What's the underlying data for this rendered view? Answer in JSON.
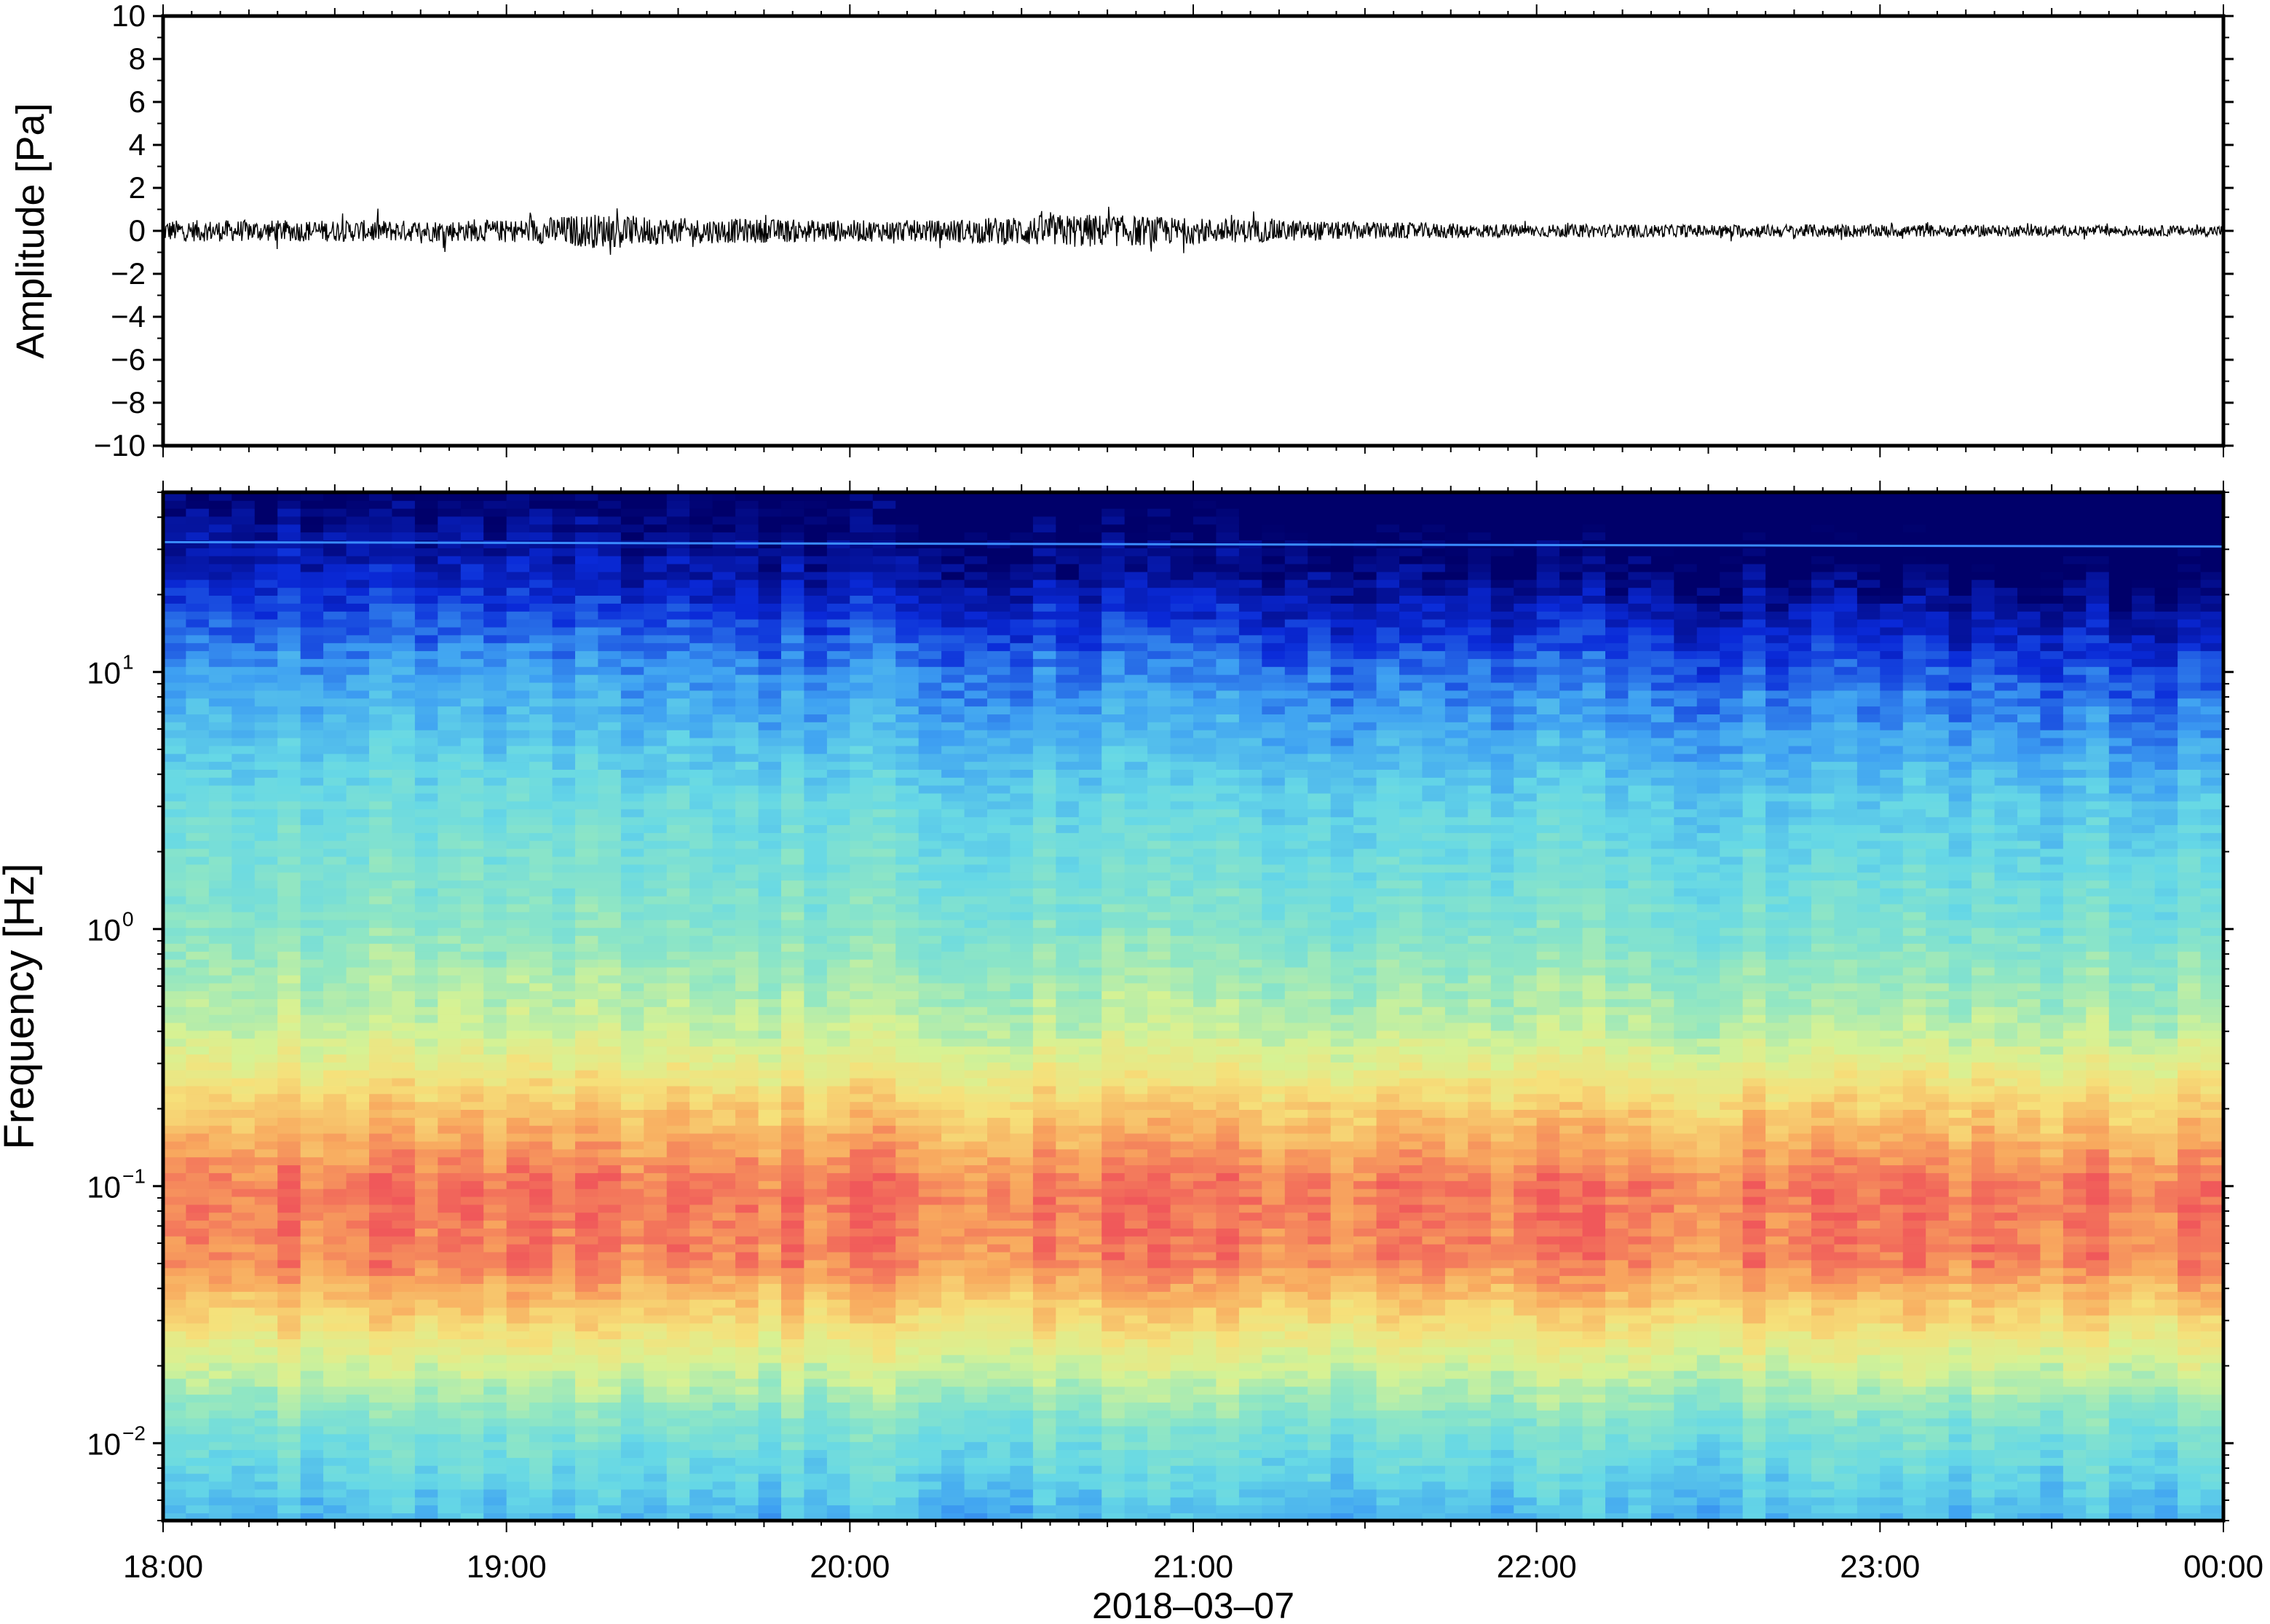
{
  "chart_data": [
    {
      "type": "line",
      "panel": "waveform",
      "ylabel": "Amplitude [Pa]",
      "ylim": [
        -10,
        10
      ],
      "yticks": [
        -10,
        -8,
        -6,
        -4,
        -2,
        0,
        2,
        4,
        6,
        8,
        10
      ],
      "ytick_labels": [
        "−10",
        "−8",
        "−6",
        "−4",
        "−2",
        "0",
        "2",
        "4",
        "6",
        "8",
        "10"
      ],
      "xlim": [
        "18:00",
        "00:00"
      ],
      "series": [
        {
          "color": "#000000",
          "x": [
            "18:00",
            "18:30",
            "19:00",
            "19:15",
            "19:30",
            "20:00",
            "20:15",
            "20:30",
            "20:40",
            "21:00",
            "21:30",
            "22:00",
            "22:30",
            "23:00",
            "23:30",
            "00:00"
          ],
          "envelope": [
            0.5,
            0.5,
            0.5,
            0.8,
            0.6,
            0.5,
            0.5,
            0.7,
            0.8,
            0.6,
            0.4,
            0.3,
            0.3,
            0.3,
            0.25,
            0.25
          ],
          "max_abs": [
            0.8,
            1.2,
            0.9,
            1.2,
            1.2,
            0.8,
            0.9,
            1.2,
            1.2,
            1.3,
            0.7,
            0.5,
            0.5,
            0.4,
            0.4,
            0.4
          ]
        }
      ],
      "grid": false
    },
    {
      "type": "heatmap",
      "panel": "spectrogram",
      "ylabel": "Frequency [Hz]",
      "xlabel": "2018–03–07",
      "y_scale": "log",
      "ylim": [
        0.005,
        50
      ],
      "yticks": [
        {
          "value": 10,
          "base": "10",
          "exp": "1"
        },
        {
          "value": 1,
          "base": "10",
          "exp": "0"
        },
        {
          "value": 0.1,
          "base": "10",
          "exp": "−1"
        },
        {
          "value": 0.01,
          "base": "10",
          "exp": "−2"
        }
      ],
      "xticks": [
        "18:00",
        "19:00",
        "20:00",
        "21:00",
        "22:00",
        "23:00",
        "00:00"
      ],
      "colormap": [
        "#00006a",
        "#0a2ad8",
        "#3ea0f2",
        "#66d8e6",
        "#8fe6c4",
        "#d6f294",
        "#f6e07a",
        "#f8a85e",
        "#f0585a"
      ],
      "frequency_profile": [
        {
          "hz": 0.005,
          "level": 0.3
        },
        {
          "hz": 0.012,
          "level": 0.45
        },
        {
          "hz": 0.02,
          "level": 0.62
        },
        {
          "hz": 0.05,
          "level": 0.92
        },
        {
          "hz": 0.1,
          "level": 0.95
        },
        {
          "hz": 0.2,
          "level": 0.8
        },
        {
          "hz": 0.4,
          "level": 0.6
        },
        {
          "hz": 1,
          "level": 0.48
        },
        {
          "hz": 3,
          "level": 0.4
        },
        {
          "hz": 10,
          "level": 0.25
        },
        {
          "hz": 25,
          "level": 0.08
        },
        {
          "hz": 50,
          "level": 0.0
        }
      ],
      "time_trend": {
        "start_offset": 0.02,
        "end_offset": -0.12
      },
      "tonal_line_hz": 32,
      "grid": false
    }
  ]
}
